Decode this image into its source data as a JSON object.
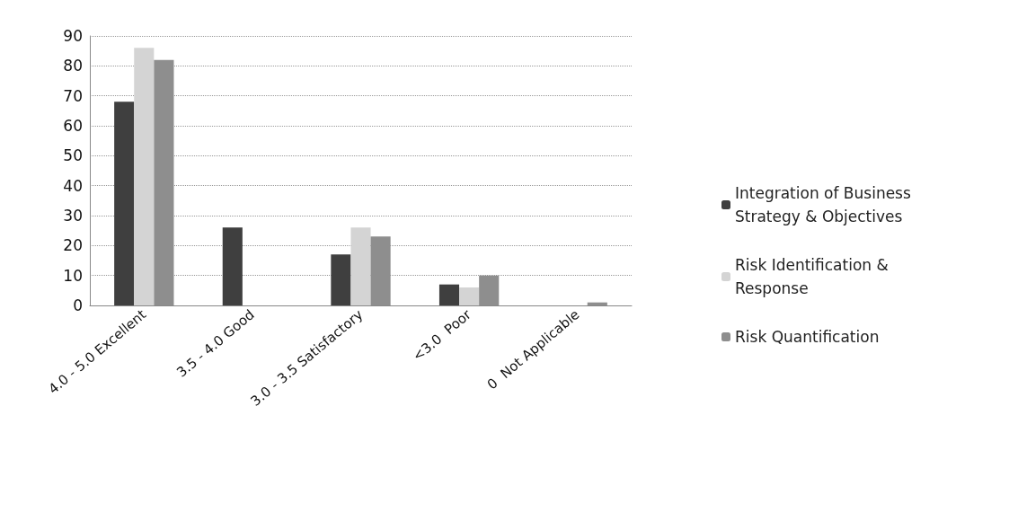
{
  "chart_data": {
    "type": "bar",
    "categories": [
      "4.0 - 5.0 Excellent",
      "3.5 - 4.0 Good",
      "3.0 - 3.5 Satisfactory",
      "<3.0  Poor",
      "0  Not Applicable"
    ],
    "series": [
      {
        "name": "Integration of Business Strategy & Objectives",
        "color": "#3f3f3f",
        "values": [
          68,
          26,
          17,
          7,
          0
        ]
      },
      {
        "name": "Risk Identification & Response",
        "color": "#d4d4d4",
        "values": [
          86,
          0,
          26,
          6,
          0
        ]
      },
      {
        "name": "Risk Quantification",
        "color": "#8e8e8e",
        "values": [
          82,
          0,
          23,
          10,
          1
        ]
      }
    ],
    "ylim": [
      0,
      90
    ],
    "yticks": [
      0,
      10,
      20,
      30,
      40,
      50,
      60,
      70,
      80,
      90
    ],
    "grid": "y",
    "legend": "right"
  }
}
